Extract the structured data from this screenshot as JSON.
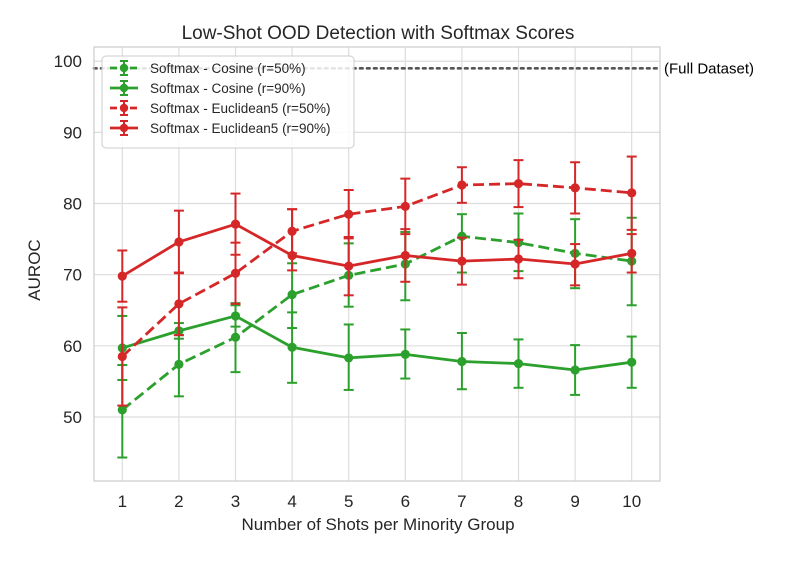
{
  "chart_data": {
    "type": "line",
    "title": "Low-Shot OOD Detection with Softmax Scores",
    "xlabel": "Number of Shots per Minority Group",
    "ylabel": "AUROC",
    "x": [
      1,
      2,
      3,
      4,
      5,
      6,
      7,
      8,
      9,
      10
    ],
    "xlim": [
      0.5,
      10.5
    ],
    "ylim": [
      41,
      102
    ],
    "yticks": [
      50,
      60,
      70,
      80,
      90,
      100
    ],
    "grid": true,
    "legend_position": "top-left",
    "reference_line": {
      "value": 99,
      "label": "(Full Dataset)",
      "color": "#555555",
      "style": "dotted"
    },
    "series": [
      {
        "name": "Softmax - Cosine (r=50%)",
        "color": "#2ca02c",
        "style": "dashed",
        "values": [
          51.0,
          57.4,
          61.2,
          67.2,
          69.9,
          71.5,
          75.4,
          74.5,
          73.0,
          71.9
        ],
        "err_low": [
          44.3,
          52.9,
          56.3,
          62.5,
          65.5,
          66.4,
          70.3,
          70.5,
          68.1,
          65.7
        ],
        "err_high": [
          57.3,
          61.5,
          66.0,
          71.6,
          74.4,
          76.0,
          78.5,
          78.6,
          77.8,
          78.0
        ]
      },
      {
        "name": "Softmax - Cosine (r=90%)",
        "color": "#2ca02c",
        "style": "solid",
        "values": [
          59.7,
          62.1,
          64.2,
          59.8,
          58.3,
          58.8,
          57.8,
          57.5,
          56.6,
          57.7
        ],
        "err_low": [
          55.2,
          61.0,
          62.7,
          54.8,
          53.8,
          55.4,
          53.9,
          54.1,
          53.1,
          54.1
        ],
        "err_high": [
          64.2,
          63.2,
          65.7,
          64.7,
          63.0,
          62.3,
          61.8,
          60.9,
          60.1,
          61.3
        ]
      },
      {
        "name": "Softmax - Euclidean5 (r=50%)",
        "color": "#d62728",
        "style": "dashed",
        "values": [
          58.5,
          65.9,
          70.2,
          76.1,
          78.5,
          79.6,
          82.6,
          82.8,
          82.2,
          81.5
        ],
        "err_low": [
          51.6,
          61.5,
          65.9,
          73.0,
          75.1,
          75.7,
          80.1,
          79.5,
          78.6,
          76.3
        ],
        "err_high": [
          65.4,
          70.3,
          74.5,
          79.2,
          81.9,
          83.5,
          85.1,
          86.1,
          85.8,
          86.6
        ]
      },
      {
        "name": "Softmax - Euclidean5 (r=90%)",
        "color": "#d62728",
        "style": "solid",
        "values": [
          69.8,
          74.6,
          77.1,
          72.7,
          71.2,
          72.7,
          71.9,
          72.2,
          71.5,
          73.0
        ],
        "err_low": [
          66.2,
          70.2,
          72.8,
          70.6,
          67.1,
          69.0,
          68.6,
          69.5,
          68.5,
          70.3
        ],
        "err_high": [
          73.4,
          79.0,
          81.4,
          79.2,
          75.3,
          76.4,
          75.2,
          74.9,
          74.3,
          75.7
        ]
      }
    ]
  }
}
